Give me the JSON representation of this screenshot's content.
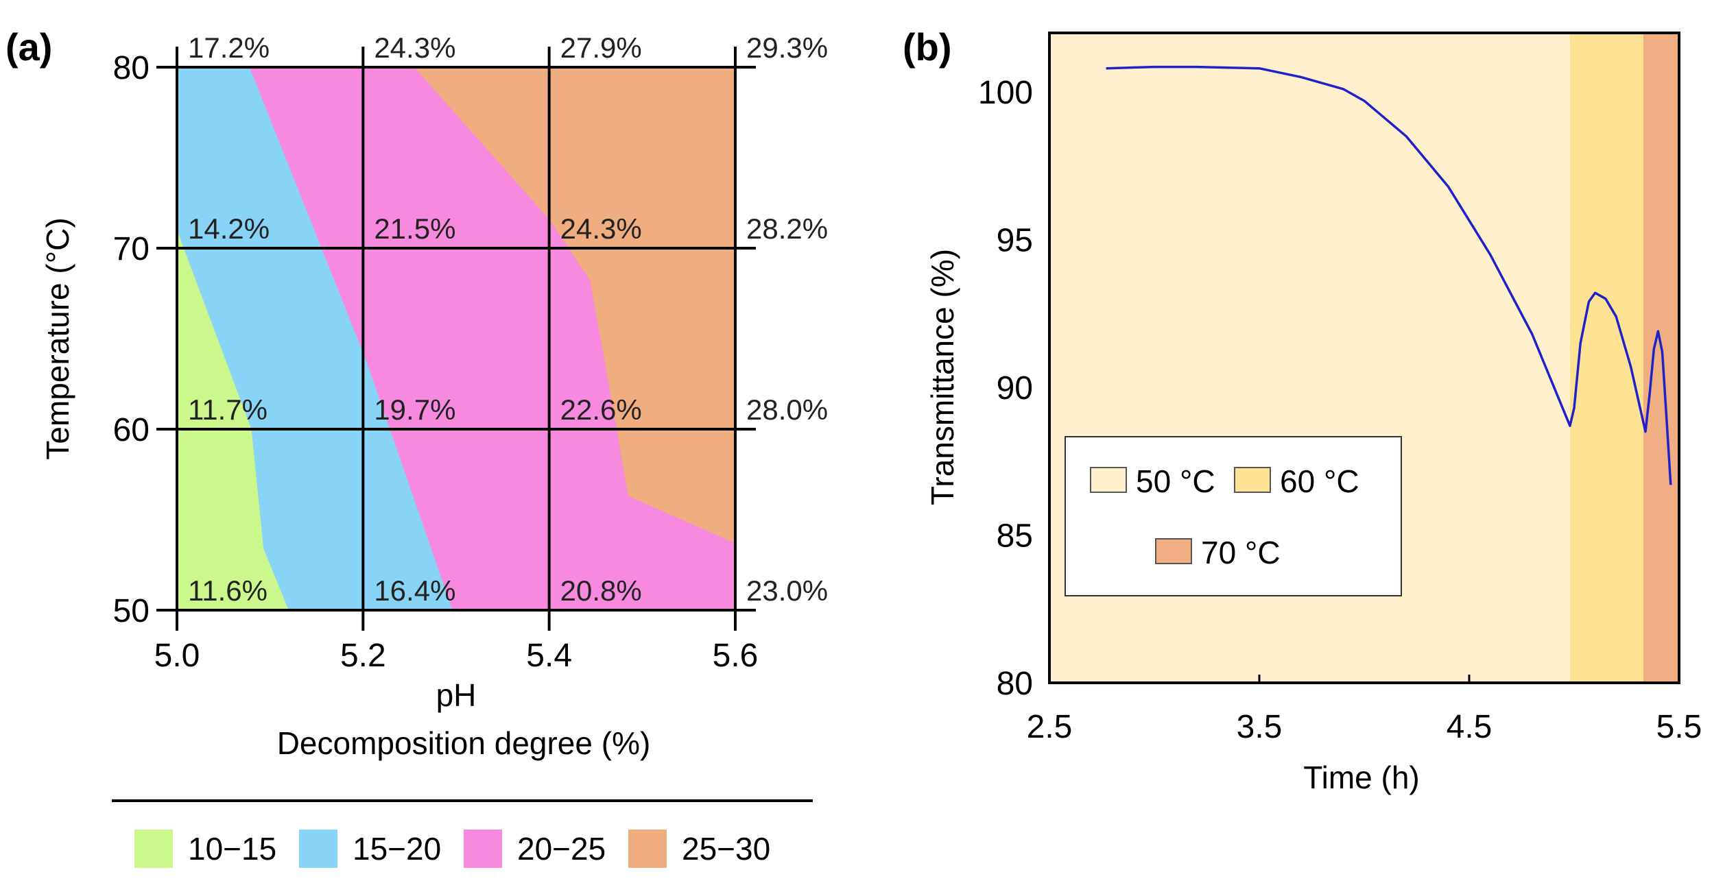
{
  "chart_data": [
    {
      "panel_label": "(a)",
      "type": "heatmap",
      "subtype": "contour",
      "xlabel": "pH",
      "ylabel": "Temperature (°C)",
      "xlim": [
        5.0,
        5.6
      ],
      "ylim": [
        50,
        80
      ],
      "x_ticks": [
        "5.0",
        "5.2",
        "5.4",
        "5.6"
      ],
      "y_ticks": [
        "50",
        "60",
        "70",
        "80"
      ],
      "x": [
        5.0,
        5.2,
        5.4,
        5.6
      ],
      "y": [
        50,
        60,
        70,
        80
      ],
      "grid": true,
      "values": [
        {
          "T": 80,
          "row": [
            "17.2%",
            "24.3%",
            "27.9%",
            "29.3%"
          ]
        },
        {
          "T": 70,
          "row": [
            "14.2%",
            "21.5%",
            "24.3%",
            "28.2%"
          ]
        },
        {
          "T": 60,
          "row": [
            "11.7%",
            "19.7%",
            "22.6%",
            "28.0%"
          ]
        },
        {
          "T": 50,
          "row": [
            "11.6%",
            "16.4%",
            "20.8%",
            "23.0%"
          ]
        }
      ],
      "legend_title": "Decomposition degree (%)",
      "legend_placement": "bottom",
      "levels": [
        {
          "label": "10−15",
          "color": "#ccf78c"
        },
        {
          "label": "15−20",
          "color": "#88d4f7"
        },
        {
          "label": "20−25",
          "color": "#f78ade"
        },
        {
          "label": "25−30",
          "color": "#f0ad7f"
        }
      ],
      "contour_boundaries": {
        "10-15|15-20": [
          [
            5.0,
            71
          ],
          [
            5.08,
            60
          ],
          [
            5.093,
            53.4
          ],
          [
            5.12,
            50
          ]
        ],
        "15-20|20-25": [
          [
            5.078,
            80
          ],
          [
            5.204,
            63.7
          ],
          [
            5.296,
            50
          ]
        ],
        "20-25|25-30": [
          [
            5.255,
            80
          ],
          [
            5.4,
            71.6
          ],
          [
            5.444,
            68.2
          ],
          [
            5.464,
            62.5
          ],
          [
            5.485,
            56.3
          ],
          [
            5.6,
            53.7
          ]
        ]
      }
    },
    {
      "panel_label": "(b)",
      "type": "line",
      "xlabel": "Time (h)",
      "ylabel": "Transmittance (%)",
      "xlim": [
        2.5,
        5.5
      ],
      "ylim": [
        80,
        102
      ],
      "x_ticks": [
        "2.5",
        "3.5",
        "4.5",
        "5.5"
      ],
      "y_ticks": [
        "80",
        "85",
        "90",
        "95",
        "100"
      ],
      "line_color": "#1f22c8",
      "series": [
        {
          "name": "Transmittance",
          "x": [
            2.77,
            3.0,
            3.2,
            3.5,
            3.7,
            3.9,
            4.0,
            4.2,
            4.4,
            4.6,
            4.8,
            4.98,
            5.0,
            5.03,
            5.07,
            5.1,
            5.15,
            5.2,
            5.27,
            5.34,
            5.36,
            5.38,
            5.4,
            5.42,
            5.44,
            5.46
          ],
          "y": [
            100.8,
            100.85,
            100.85,
            100.8,
            100.5,
            100.1,
            99.7,
            98.5,
            96.8,
            94.5,
            91.8,
            88.7,
            89.3,
            91.5,
            92.9,
            93.2,
            93.0,
            92.4,
            90.7,
            88.5,
            89.8,
            91.3,
            91.9,
            91.2,
            89.0,
            86.7
          ]
        }
      ],
      "temperature_spans": [
        {
          "label": "50 °C",
          "from": 2.5,
          "to": 4.98,
          "color": "#fef0cc"
        },
        {
          "label": "60 °C",
          "from": 4.98,
          "to": 5.33,
          "color": "#fde293"
        },
        {
          "label": "70 °C",
          "from": 5.33,
          "to": 5.5,
          "color": "#f0ae82"
        }
      ],
      "legend_placement": "lower-left"
    }
  ]
}
